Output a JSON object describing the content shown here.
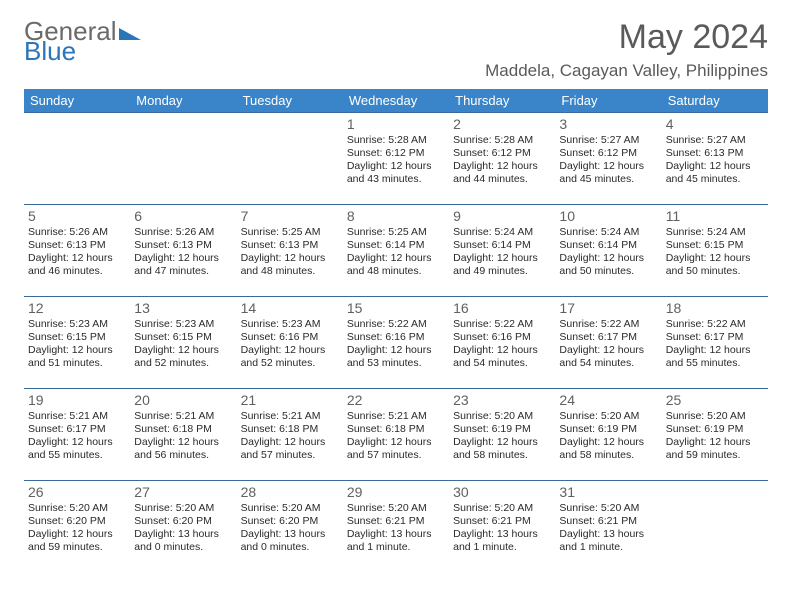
{
  "brand": {
    "word1": "General",
    "word2": "Blue"
  },
  "title": "May 2024",
  "location": "Maddela, Cagayan Valley, Philippines",
  "colors": {
    "header_bg": "#3a85c9",
    "header_text": "#ffffff",
    "cell_border": "#3a6a9a",
    "daynum": "#606060",
    "body_text": "#2a2a2a",
    "brand_gray": "#6a6a6a",
    "brand_blue": "#2a76b8",
    "page_bg": "#ffffff"
  },
  "dow": [
    "Sunday",
    "Monday",
    "Tuesday",
    "Wednesday",
    "Thursday",
    "Friday",
    "Saturday"
  ],
  "weeks": [
    [
      null,
      null,
      null,
      {
        "n": "1",
        "sunrise": "5:28 AM",
        "sunset": "6:12 PM",
        "daylight1": "Daylight: 12 hours",
        "daylight2": "and 43 minutes."
      },
      {
        "n": "2",
        "sunrise": "5:28 AM",
        "sunset": "6:12 PM",
        "daylight1": "Daylight: 12 hours",
        "daylight2": "and 44 minutes."
      },
      {
        "n": "3",
        "sunrise": "5:27 AM",
        "sunset": "6:12 PM",
        "daylight1": "Daylight: 12 hours",
        "daylight2": "and 45 minutes."
      },
      {
        "n": "4",
        "sunrise": "5:27 AM",
        "sunset": "6:13 PM",
        "daylight1": "Daylight: 12 hours",
        "daylight2": "and 45 minutes."
      }
    ],
    [
      {
        "n": "5",
        "sunrise": "5:26 AM",
        "sunset": "6:13 PM",
        "daylight1": "Daylight: 12 hours",
        "daylight2": "and 46 minutes."
      },
      {
        "n": "6",
        "sunrise": "5:26 AM",
        "sunset": "6:13 PM",
        "daylight1": "Daylight: 12 hours",
        "daylight2": "and 47 minutes."
      },
      {
        "n": "7",
        "sunrise": "5:25 AM",
        "sunset": "6:13 PM",
        "daylight1": "Daylight: 12 hours",
        "daylight2": "and 48 minutes."
      },
      {
        "n": "8",
        "sunrise": "5:25 AM",
        "sunset": "6:14 PM",
        "daylight1": "Daylight: 12 hours",
        "daylight2": "and 48 minutes."
      },
      {
        "n": "9",
        "sunrise": "5:24 AM",
        "sunset": "6:14 PM",
        "daylight1": "Daylight: 12 hours",
        "daylight2": "and 49 minutes."
      },
      {
        "n": "10",
        "sunrise": "5:24 AM",
        "sunset": "6:14 PM",
        "daylight1": "Daylight: 12 hours",
        "daylight2": "and 50 minutes."
      },
      {
        "n": "11",
        "sunrise": "5:24 AM",
        "sunset": "6:15 PM",
        "daylight1": "Daylight: 12 hours",
        "daylight2": "and 50 minutes."
      }
    ],
    [
      {
        "n": "12",
        "sunrise": "5:23 AM",
        "sunset": "6:15 PM",
        "daylight1": "Daylight: 12 hours",
        "daylight2": "and 51 minutes."
      },
      {
        "n": "13",
        "sunrise": "5:23 AM",
        "sunset": "6:15 PM",
        "daylight1": "Daylight: 12 hours",
        "daylight2": "and 52 minutes."
      },
      {
        "n": "14",
        "sunrise": "5:23 AM",
        "sunset": "6:16 PM",
        "daylight1": "Daylight: 12 hours",
        "daylight2": "and 52 minutes."
      },
      {
        "n": "15",
        "sunrise": "5:22 AM",
        "sunset": "6:16 PM",
        "daylight1": "Daylight: 12 hours",
        "daylight2": "and 53 minutes."
      },
      {
        "n": "16",
        "sunrise": "5:22 AM",
        "sunset": "6:16 PM",
        "daylight1": "Daylight: 12 hours",
        "daylight2": "and 54 minutes."
      },
      {
        "n": "17",
        "sunrise": "5:22 AM",
        "sunset": "6:17 PM",
        "daylight1": "Daylight: 12 hours",
        "daylight2": "and 54 minutes."
      },
      {
        "n": "18",
        "sunrise": "5:22 AM",
        "sunset": "6:17 PM",
        "daylight1": "Daylight: 12 hours",
        "daylight2": "and 55 minutes."
      }
    ],
    [
      {
        "n": "19",
        "sunrise": "5:21 AM",
        "sunset": "6:17 PM",
        "daylight1": "Daylight: 12 hours",
        "daylight2": "and 55 minutes."
      },
      {
        "n": "20",
        "sunrise": "5:21 AM",
        "sunset": "6:18 PM",
        "daylight1": "Daylight: 12 hours",
        "daylight2": "and 56 minutes."
      },
      {
        "n": "21",
        "sunrise": "5:21 AM",
        "sunset": "6:18 PM",
        "daylight1": "Daylight: 12 hours",
        "daylight2": "and 57 minutes."
      },
      {
        "n": "22",
        "sunrise": "5:21 AM",
        "sunset": "6:18 PM",
        "daylight1": "Daylight: 12 hours",
        "daylight2": "and 57 minutes."
      },
      {
        "n": "23",
        "sunrise": "5:20 AM",
        "sunset": "6:19 PM",
        "daylight1": "Daylight: 12 hours",
        "daylight2": "and 58 minutes."
      },
      {
        "n": "24",
        "sunrise": "5:20 AM",
        "sunset": "6:19 PM",
        "daylight1": "Daylight: 12 hours",
        "daylight2": "and 58 minutes."
      },
      {
        "n": "25",
        "sunrise": "5:20 AM",
        "sunset": "6:19 PM",
        "daylight1": "Daylight: 12 hours",
        "daylight2": "and 59 minutes."
      }
    ],
    [
      {
        "n": "26",
        "sunrise": "5:20 AM",
        "sunset": "6:20 PM",
        "daylight1": "Daylight: 12 hours",
        "daylight2": "and 59 minutes."
      },
      {
        "n": "27",
        "sunrise": "5:20 AM",
        "sunset": "6:20 PM",
        "daylight1": "Daylight: 13 hours",
        "daylight2": "and 0 minutes."
      },
      {
        "n": "28",
        "sunrise": "5:20 AM",
        "sunset": "6:20 PM",
        "daylight1": "Daylight: 13 hours",
        "daylight2": "and 0 minutes."
      },
      {
        "n": "29",
        "sunrise": "5:20 AM",
        "sunset": "6:21 PM",
        "daylight1": "Daylight: 13 hours",
        "daylight2": "and 1 minute."
      },
      {
        "n": "30",
        "sunrise": "5:20 AM",
        "sunset": "6:21 PM",
        "daylight1": "Daylight: 13 hours",
        "daylight2": "and 1 minute."
      },
      {
        "n": "31",
        "sunrise": "5:20 AM",
        "sunset": "6:21 PM",
        "daylight1": "Daylight: 13 hours",
        "daylight2": "and 1 minute."
      },
      null
    ]
  ]
}
